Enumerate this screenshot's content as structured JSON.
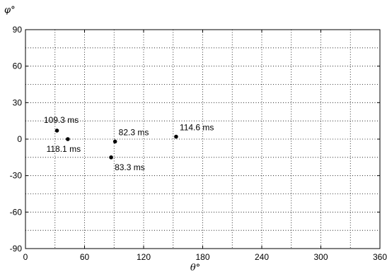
{
  "chart_data": {
    "type": "scatter",
    "xlabel": "θ°",
    "ylabel": "φ°",
    "xlim": [
      0,
      360
    ],
    "ylim": [
      -90,
      90
    ],
    "x_ticks": [
      "0",
      "60",
      "120",
      "180",
      "240",
      "300",
      "360"
    ],
    "y_ticks": [
      "90",
      "60",
      "30",
      "0",
      "-30",
      "-60",
      "-90"
    ],
    "x_minor_step": 30,
    "y_minor_step": 15,
    "grid": true,
    "marker_color": "#000000",
    "points": [
      {
        "x": 32,
        "y": 7,
        "label": "109.3 ms",
        "label_pos": "above-left"
      },
      {
        "x": 43,
        "y": 0,
        "label": "118.1 ms",
        "label_pos": "below-left"
      },
      {
        "x": 91,
        "y": -2,
        "label": "82.3 ms",
        "label_pos": "above-right"
      },
      {
        "x": 87,
        "y": -15,
        "label": "83.3 ms",
        "label_pos": "below-right"
      },
      {
        "x": 153,
        "y": 2,
        "label": "114.6 ms",
        "label_pos": "above-right"
      }
    ]
  }
}
